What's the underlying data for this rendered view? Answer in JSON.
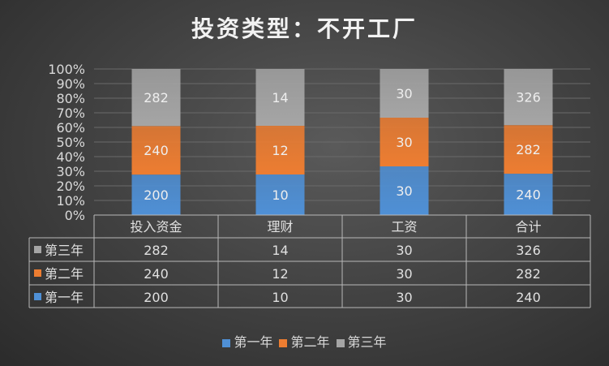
{
  "chart_data": {
    "type": "bar",
    "stacked": "percent",
    "title": "投资类型：不开工厂",
    "categories": [
      "投入资金",
      "理财",
      "工资",
      "合计"
    ],
    "series": [
      {
        "name": "第一年",
        "values": [
          200,
          10,
          30,
          240
        ],
        "color": "#4f90d6"
      },
      {
        "name": "第二年",
        "values": [
          240,
          12,
          30,
          282
        ],
        "color": "#ed7d31"
      },
      {
        "name": "第三年",
        "values": [
          282,
          14,
          30,
          326
        ],
        "color": "#a5a5a5"
      }
    ],
    "yticks": [
      "0%",
      "10%",
      "20%",
      "30%",
      "40%",
      "50%",
      "60%",
      "70%",
      "80%",
      "90%",
      "100%"
    ],
    "ylim": [
      0,
      100
    ],
    "grid": true,
    "data_labels": true,
    "data_table": true,
    "legend": "bottom"
  }
}
